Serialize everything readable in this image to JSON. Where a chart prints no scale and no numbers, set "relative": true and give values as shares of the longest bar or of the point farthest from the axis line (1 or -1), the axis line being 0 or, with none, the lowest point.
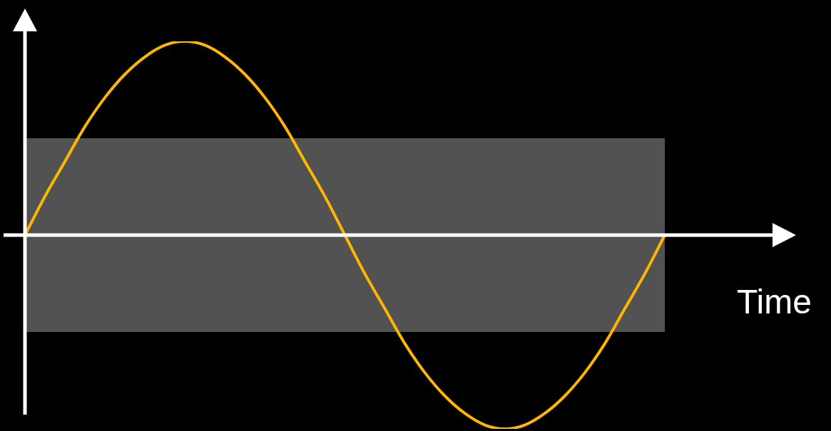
{
  "chart_data": {
    "type": "line",
    "relative": true,
    "xlabel": "Time",
    "grid": false,
    "legend": false,
    "marker": "none",
    "line_style": "solid",
    "categories": [
      null,
      null,
      null,
      null,
      null,
      null,
      null,
      null,
      null,
      null,
      null,
      null,
      null,
      null,
      null,
      null,
      null,
      null,
      null,
      null,
      null,
      null,
      null,
      null,
      null,
      null,
      null,
      null,
      null,
      null,
      null,
      null,
      null
    ],
    "series": [
      {
        "color": "#ffb600",
        "values": [
          0,
          0.2,
          0.38,
          0.56,
          0.71,
          0.83,
          0.92,
          0.98,
          1,
          0.98,
          0.92,
          0.83,
          0.71,
          0.56,
          0.38,
          0.2,
          0,
          -0.2,
          -0.38,
          -0.56,
          -0.71,
          -0.83,
          -0.92,
          -0.98,
          -1,
          -0.98,
          -0.92,
          -0.83,
          -0.71,
          -0.56,
          -0.38,
          -0.2,
          0
        ]
      }
    ],
    "bands": [
      {
        "axis": "y",
        "from": -0.5,
        "to": 0.5,
        "color": "#525252"
      }
    ]
  }
}
